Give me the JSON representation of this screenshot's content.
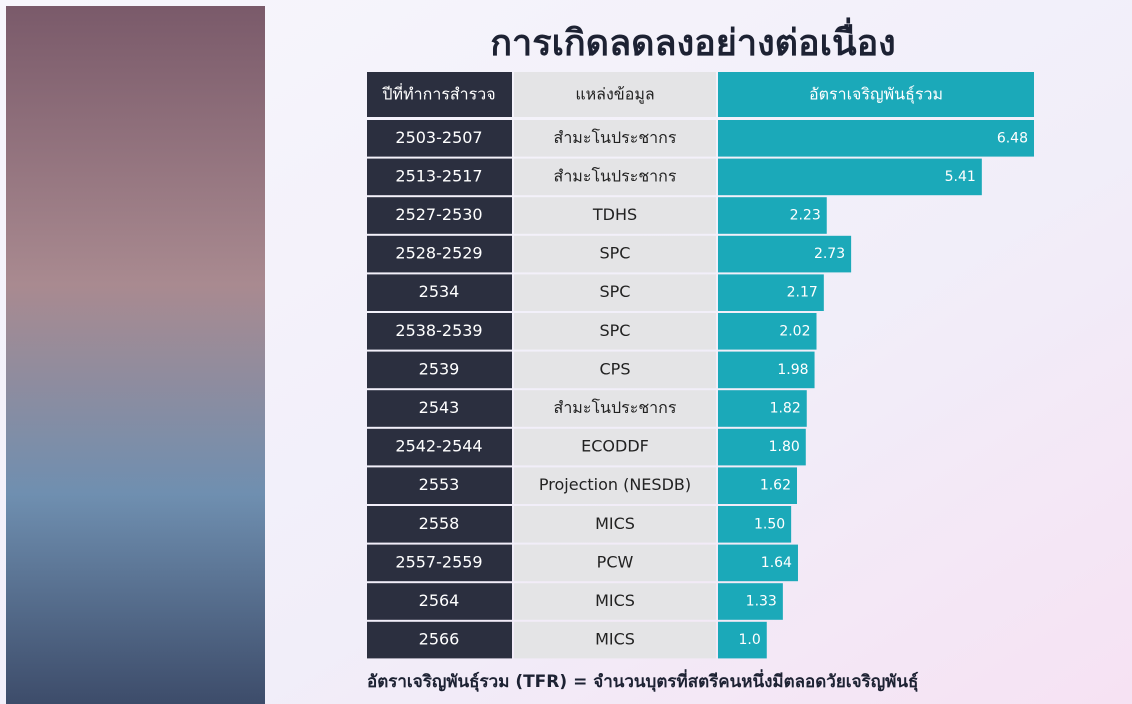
{
  "chart_data": {
    "type": "bar",
    "orientation": "horizontal",
    "title": "การเกิดลดลงอย่างต่อเนื่อง",
    "column_headers": [
      "ปีที่ทำการสำรวจ",
      "แหล่งข้อมูล",
      "อัตราเจริญพันธุ์รวม"
    ],
    "categories": [
      "2503-2507",
      "2513-2517",
      "2527-2530",
      "2528-2529",
      "2534",
      "2538-2539",
      "2539",
      "2543",
      "2542-2544",
      "2553",
      "2558",
      "2557-2559",
      "2564",
      "2566"
    ],
    "sources": [
      "สำมะโนประชากร",
      "สำมะโนประชากร",
      "TDHS",
      "SPC",
      "SPC",
      "SPC",
      "CPS",
      "สำมะโนประชากร",
      "ECODDF",
      "Projection (NESDB)",
      "MICS",
      "PCW",
      "MICS",
      "MICS"
    ],
    "values": [
      6.48,
      5.41,
      2.23,
      2.73,
      2.17,
      2.02,
      1.98,
      1.82,
      1.8,
      1.62,
      1.5,
      1.64,
      1.33,
      1.0
    ],
    "value_labels": [
      "6.48",
      "5.41",
      "2.23",
      "2.73",
      "2.17",
      "2.02",
      "1.98",
      "1.82",
      "1.80",
      "1.62",
      "1.50",
      "1.64",
      "1.33",
      "1.0"
    ],
    "color": "#1ba9b9",
    "footnote": "อัตราเจริญพันธุ์รวม (TFR) = จำนวนบุตรที่สตรีคนหนึ่งมีตลอดวัยเจริญพันธุ์"
  }
}
